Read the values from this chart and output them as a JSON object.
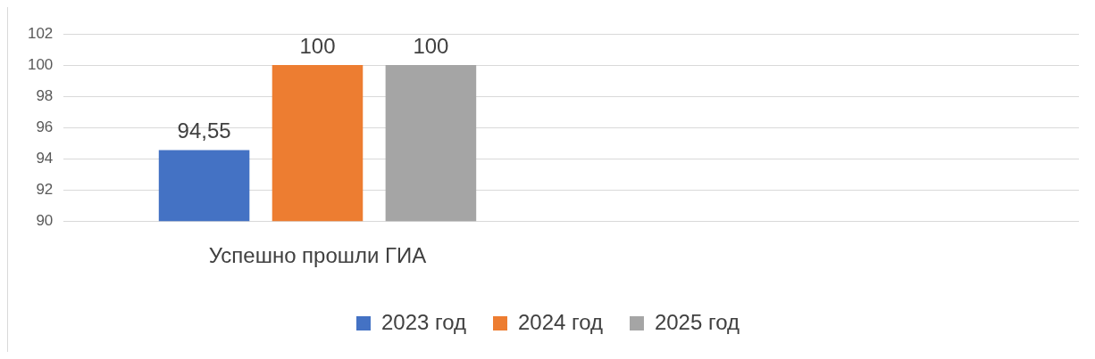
{
  "chart_data": {
    "type": "bar",
    "categories": [
      "Успешно прошли ГИА",
      null
    ],
    "series": [
      {
        "name": "2023 год",
        "color": "#4472c4",
        "values": [
          94.55,
          null
        ],
        "value_labels": [
          "94,55",
          null
        ]
      },
      {
        "name": "2024 год",
        "color": "#ed7d31",
        "values": [
          100,
          null
        ],
        "value_labels": [
          "100",
          null
        ]
      },
      {
        "name": "2025 год",
        "color": "#a5a5a5",
        "values": [
          100,
          null
        ],
        "value_labels": [
          "100",
          null
        ]
      }
    ],
    "ylim": [
      90,
      102
    ],
    "yticks": [
      90,
      92,
      94,
      96,
      98,
      100,
      102
    ],
    "grid": "y",
    "legend": "bottom"
  }
}
